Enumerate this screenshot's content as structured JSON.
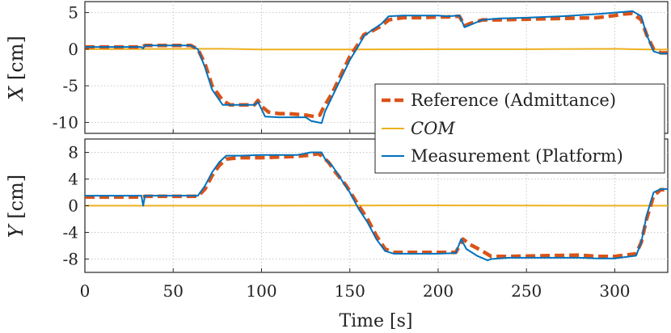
{
  "chart_data": [
    {
      "type": "line",
      "title": "",
      "ylabel_var": "X",
      "ylabel_unit": "[cm]",
      "xlabel": "",
      "xlim": [
        0,
        330
      ],
      "ylim": [
        -11.5,
        6.5
      ],
      "yticks": [
        5,
        0,
        -5,
        -10
      ],
      "ytick_labels": [
        "5",
        "0",
        "-5",
        "-10"
      ],
      "grid": true,
      "legend": {
        "position": "right",
        "entries": [
          {
            "label": "Reference (Admittance)",
            "italic": false
          },
          {
            "label": "COM",
            "italic": true
          },
          {
            "label": "Measurement (Platform)",
            "italic": false
          }
        ]
      },
      "series": [
        {
          "name": "Reference (Admittance)",
          "color": "#D95319",
          "style": "dashed",
          "x": [
            0,
            32,
            34,
            60,
            64,
            68,
            72,
            78,
            82,
            96,
            98,
            100,
            104,
            110,
            115,
            125,
            130,
            133,
            135,
            140,
            145,
            150,
            155,
            158,
            162,
            168,
            172,
            180,
            190,
            200,
            205,
            212,
            215,
            218,
            225,
            235,
            250,
            270,
            290,
            300,
            305,
            310,
            315,
            318,
            322,
            326,
            330
          ],
          "y": [
            0.3,
            0.3,
            0.5,
            0.5,
            0.0,
            -2.0,
            -5.0,
            -7.0,
            -7.6,
            -7.6,
            -7.0,
            -7.8,
            -8.6,
            -8.8,
            -8.8,
            -9.0,
            -9.2,
            -9.0,
            -8.0,
            -6.0,
            -3.5,
            -1.0,
            0.8,
            2.0,
            2.4,
            3.2,
            4.0,
            4.3,
            4.3,
            4.4,
            4.4,
            4.5,
            3.2,
            3.5,
            4.0,
            4.0,
            4.1,
            4.2,
            4.3,
            4.6,
            4.8,
            4.9,
            4.0,
            2.0,
            0.0,
            -0.5,
            -0.5
          ]
        },
        {
          "name": "COM",
          "color": "#EDB120",
          "style": "solid",
          "x": [
            0,
            60,
            80,
            100,
            140,
            200,
            250,
            300,
            310,
            320,
            330
          ],
          "y": [
            0.0,
            0.05,
            0.05,
            -0.05,
            -0.05,
            0.0,
            0.0,
            0.05,
            0.0,
            -0.05,
            -0.05
          ]
        },
        {
          "name": "Measurement (Platform)",
          "color": "#0072BD",
          "style": "solid",
          "x": [
            0,
            32,
            33,
            34,
            60,
            64,
            68,
            72,
            78,
            82,
            96,
            98,
            100,
            102,
            110,
            125,
            128,
            132,
            134,
            136,
            140,
            145,
            150,
            155,
            158,
            162,
            168,
            172,
            180,
            190,
            200,
            205,
            212,
            215,
            218,
            225,
            235,
            250,
            270,
            290,
            300,
            305,
            310,
            315,
            318,
            322,
            326,
            330
          ],
          "y": [
            0.3,
            0.3,
            0.1,
            0.5,
            0.5,
            0.0,
            -2.5,
            -5.5,
            -7.6,
            -7.6,
            -7.6,
            -7.2,
            -8.2,
            -9.2,
            -9.3,
            -9.3,
            -9.8,
            -10.0,
            -10.1,
            -8.5,
            -6.5,
            -4.0,
            -1.5,
            0.5,
            1.8,
            2.5,
            3.5,
            4.5,
            4.6,
            4.6,
            4.6,
            4.5,
            4.6,
            3.0,
            3.3,
            4.0,
            4.2,
            4.3,
            4.5,
            4.8,
            5.0,
            5.1,
            5.2,
            4.5,
            2.0,
            -0.3,
            -0.6,
            -0.6
          ]
        }
      ]
    },
    {
      "type": "line",
      "title": "",
      "ylabel_var": "Y",
      "ylabel_unit": "[cm]",
      "xlabel": "Time [s]",
      "xlim": [
        0,
        330
      ],
      "ylim": [
        -10,
        10
      ],
      "yticks": [
        8,
        4,
        0,
        -4,
        -8
      ],
      "ytick_labels": [
        "8",
        "4",
        "0",
        "-4",
        "-8"
      ],
      "xticks": [
        0,
        50,
        100,
        150,
        200,
        250,
        300
      ],
      "xtick_labels": [
        "0",
        "50",
        "100",
        "150",
        "200",
        "250",
        "300"
      ],
      "grid": true,
      "series": [
        {
          "name": "Reference (Admittance)",
          "color": "#D95319",
          "style": "dashed",
          "x": [
            0,
            32,
            34,
            64,
            68,
            72,
            76,
            80,
            88,
            100,
            110,
            120,
            128,
            132,
            134,
            138,
            142,
            148,
            155,
            160,
            165,
            170,
            175,
            180,
            200,
            210,
            214,
            218,
            225,
            230,
            240,
            260,
            280,
            290,
            300,
            306,
            312,
            315,
            318,
            322,
            326,
            330
          ],
          "y": [
            1.3,
            1.3,
            1.4,
            1.4,
            2.5,
            4.5,
            6.0,
            7.0,
            7.2,
            7.2,
            7.3,
            7.4,
            7.6,
            7.8,
            7.5,
            6.5,
            5.0,
            3.0,
            0.0,
            -2.0,
            -4.5,
            -6.5,
            -7.0,
            -7.0,
            -7.0,
            -7.0,
            -5.0,
            -5.8,
            -6.8,
            -7.6,
            -7.6,
            -7.5,
            -7.4,
            -7.6,
            -7.6,
            -7.4,
            -7.2,
            -5.5,
            -2.0,
            1.5,
            2.4,
            2.4
          ]
        },
        {
          "name": "COM",
          "color": "#EDB120",
          "style": "solid",
          "x": [
            0,
            100,
            200,
            300,
            330
          ],
          "y": [
            0.0,
            0.0,
            0.05,
            0.0,
            0.0
          ]
        },
        {
          "name": "Measurement (Platform)",
          "color": "#0072BD",
          "style": "solid",
          "x": [
            0,
            32,
            33,
            34,
            64,
            68,
            72,
            76,
            80,
            88,
            100,
            110,
            120,
            128,
            132,
            134,
            136,
            140,
            145,
            150,
            155,
            160,
            165,
            170,
            175,
            180,
            200,
            210,
            213,
            216,
            222,
            228,
            230,
            240,
            260,
            280,
            290,
            300,
            306,
            312,
            315,
            318,
            322,
            326,
            330
          ],
          "y": [
            1.5,
            1.5,
            0.0,
            1.5,
            1.5,
            3.0,
            5.0,
            6.5,
            7.5,
            7.5,
            7.6,
            7.6,
            7.6,
            8.0,
            8.0,
            8.0,
            7.0,
            6.0,
            4.0,
            2.0,
            -0.5,
            -2.5,
            -5.0,
            -6.8,
            -7.2,
            -7.2,
            -7.2,
            -7.1,
            -5.0,
            -6.5,
            -7.5,
            -8.2,
            -8.0,
            -7.8,
            -7.8,
            -7.8,
            -7.9,
            -7.9,
            -7.7,
            -7.5,
            -5.5,
            -1.5,
            2.0,
            2.5,
            2.5
          ]
        }
      ]
    }
  ]
}
